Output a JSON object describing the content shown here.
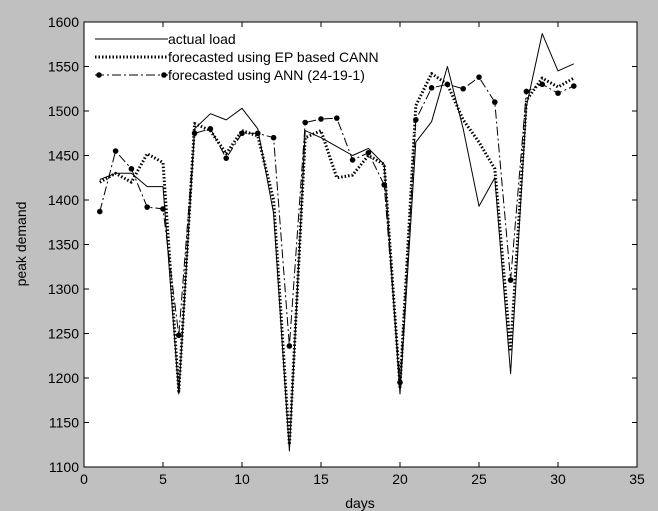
{
  "chart_data": {
    "type": "line",
    "title": "",
    "xlabel": "days",
    "ylabel": "peak demand",
    "xlim": [
      0,
      35
    ],
    "ylim": [
      1100,
      1600
    ],
    "xticks": [
      0,
      5,
      10,
      15,
      20,
      25,
      30,
      35
    ],
    "yticks": [
      1100,
      1150,
      1200,
      1250,
      1300,
      1350,
      1400,
      1450,
      1500,
      1550,
      1600
    ],
    "legend_position": "top-left",
    "grid": false,
    "background_color": "#c0c0c0",
    "plot_color": "#ffffff",
    "series": [
      {
        "name": "actual load",
        "style": "solid",
        "marker": "none",
        "color": "#000000",
        "x": [
          1,
          2,
          3,
          4,
          5,
          6,
          7,
          8,
          9,
          10,
          11,
          12,
          13,
          14,
          15,
          16,
          17,
          18,
          19,
          20,
          21,
          22,
          23,
          24,
          25,
          26,
          27,
          28,
          29,
          30,
          31
        ],
        "y": [
          1423,
          1430,
          1430,
          1415,
          1415,
          1182,
          1480,
          1497,
          1490,
          1503,
          1480,
          1385,
          1118,
          1478,
          1470,
          1460,
          1450,
          1458,
          1440,
          1182,
          1465,
          1488,
          1550,
          1480,
          1393,
          1425,
          1205,
          1505,
          1587,
          1545,
          1553
        ]
      },
      {
        "name": "forecasted using EP based CANN",
        "style": "dotted",
        "marker": "none",
        "color": "#000000",
        "x": [
          1,
          2,
          3,
          4,
          5,
          6,
          7,
          8,
          9,
          10,
          11,
          12,
          13,
          14,
          15,
          16,
          17,
          18,
          19,
          20,
          21,
          22,
          23,
          24,
          25,
          26,
          27,
          28,
          29,
          30,
          31
        ],
        "y": [
          1420,
          1430,
          1420,
          1452,
          1442,
          1185,
          1486,
          1478,
          1452,
          1478,
          1472,
          1400,
          1125,
          1470,
          1478,
          1425,
          1428,
          1450,
          1440,
          1190,
          1506,
          1542,
          1530,
          1490,
          1465,
          1435,
          1230,
          1512,
          1537,
          1527,
          1537
        ]
      },
      {
        "name": "forecasted using ANN (24-19-1)",
        "style": "dash-dot",
        "marker": "dot",
        "color": "#000000",
        "x": [
          1,
          2,
          3,
          4,
          5,
          6,
          7,
          8,
          9,
          10,
          11,
          12,
          13,
          14,
          15,
          16,
          17,
          18,
          19,
          20,
          21,
          22,
          23,
          24,
          25,
          26,
          27,
          28,
          29,
          30,
          31
        ],
        "y": [
          1387,
          1455,
          1435,
          1392,
          1390,
          1248,
          1475,
          1480,
          1447,
          1475,
          1475,
          1470,
          1236,
          1487,
          1491,
          1492,
          1445,
          1453,
          1417,
          1195,
          1490,
          1526,
          1530,
          1525,
          1538,
          1510,
          1310,
          1522,
          1530,
          1520,
          1528
        ]
      }
    ]
  }
}
